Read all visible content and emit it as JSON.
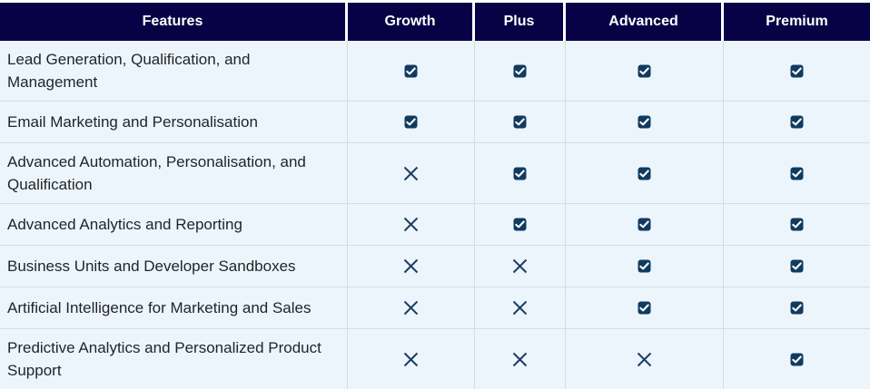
{
  "table": {
    "columns": [
      {
        "label": "Features"
      },
      {
        "label": "Growth"
      },
      {
        "label": "Plus"
      },
      {
        "label": "Advanced"
      },
      {
        "label": "Premium"
      }
    ],
    "rows": [
      {
        "feature": "Lead Generation, Qualification, and Management",
        "values": [
          "check",
          "check",
          "check",
          "check"
        ]
      },
      {
        "feature": "Email Marketing and Personalisation",
        "values": [
          "check",
          "check",
          "check",
          "check"
        ]
      },
      {
        "feature": "Advanced Automation, Personalisation, and Qualification",
        "values": [
          "cross",
          "check",
          "check",
          "check"
        ]
      },
      {
        "feature": "Advanced Analytics and Reporting",
        "values": [
          "cross",
          "check",
          "check",
          "check"
        ]
      },
      {
        "feature": "Business Units and Developer Sandboxes",
        "values": [
          "cross",
          "cross",
          "check",
          "check"
        ]
      },
      {
        "feature": "Artificial Intelligence for Marketing and Sales",
        "values": [
          "cross",
          "cross",
          "check",
          "check"
        ]
      },
      {
        "feature": "Predictive Analytics and Personalized Product Support",
        "values": [
          "cross",
          "cross",
          "cross",
          "check"
        ]
      }
    ]
  },
  "icons": {
    "check": "checked-checkbox-icon",
    "cross": "cross-icon"
  },
  "colors": {
    "header_bg": "#060245",
    "header_text": "#ffffff",
    "row_bg": "#edf5fc",
    "grid_line": "#d9dcde",
    "checkbox_fill": "#113a5f",
    "checkbox_check": "#ffffff",
    "cross": "#1c3e63",
    "feature_text": "#212529",
    "bottom_border": "#060245"
  }
}
